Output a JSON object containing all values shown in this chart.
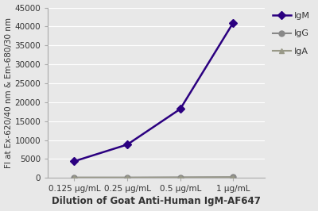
{
  "x_labels": [
    "0.125 μg/mL",
    "0.25 μg/mL",
    "0.5 μg/mL",
    "1 μg/mL"
  ],
  "x_values": [
    1,
    2,
    3,
    4
  ],
  "IgM_values": [
    4400,
    8800,
    18200,
    41000
  ],
  "IgG_values": [
    100,
    100,
    150,
    200
  ],
  "IgA_values": [
    80,
    80,
    100,
    150
  ],
  "IgM_color": "#2b0080",
  "IgG_color": "#888888",
  "IgA_color": "#999988",
  "ylabel": "FI at Ex-620/40 nm & Em-680/30 nm",
  "xlabel": "Dilution of Goat Anti-Human IgM-AF647",
  "ylim": [
    0,
    45000
  ],
  "yticks": [
    0,
    5000,
    10000,
    15000,
    20000,
    25000,
    30000,
    35000,
    40000,
    45000
  ],
  "ylabel_fontsize": 7.5,
  "xlabel_fontsize": 8.5,
  "tick_fontsize": 7.5,
  "legend_fontsize": 8,
  "bg_color": "#e8e8e8",
  "plot_bg_color": "#e8e8e8"
}
